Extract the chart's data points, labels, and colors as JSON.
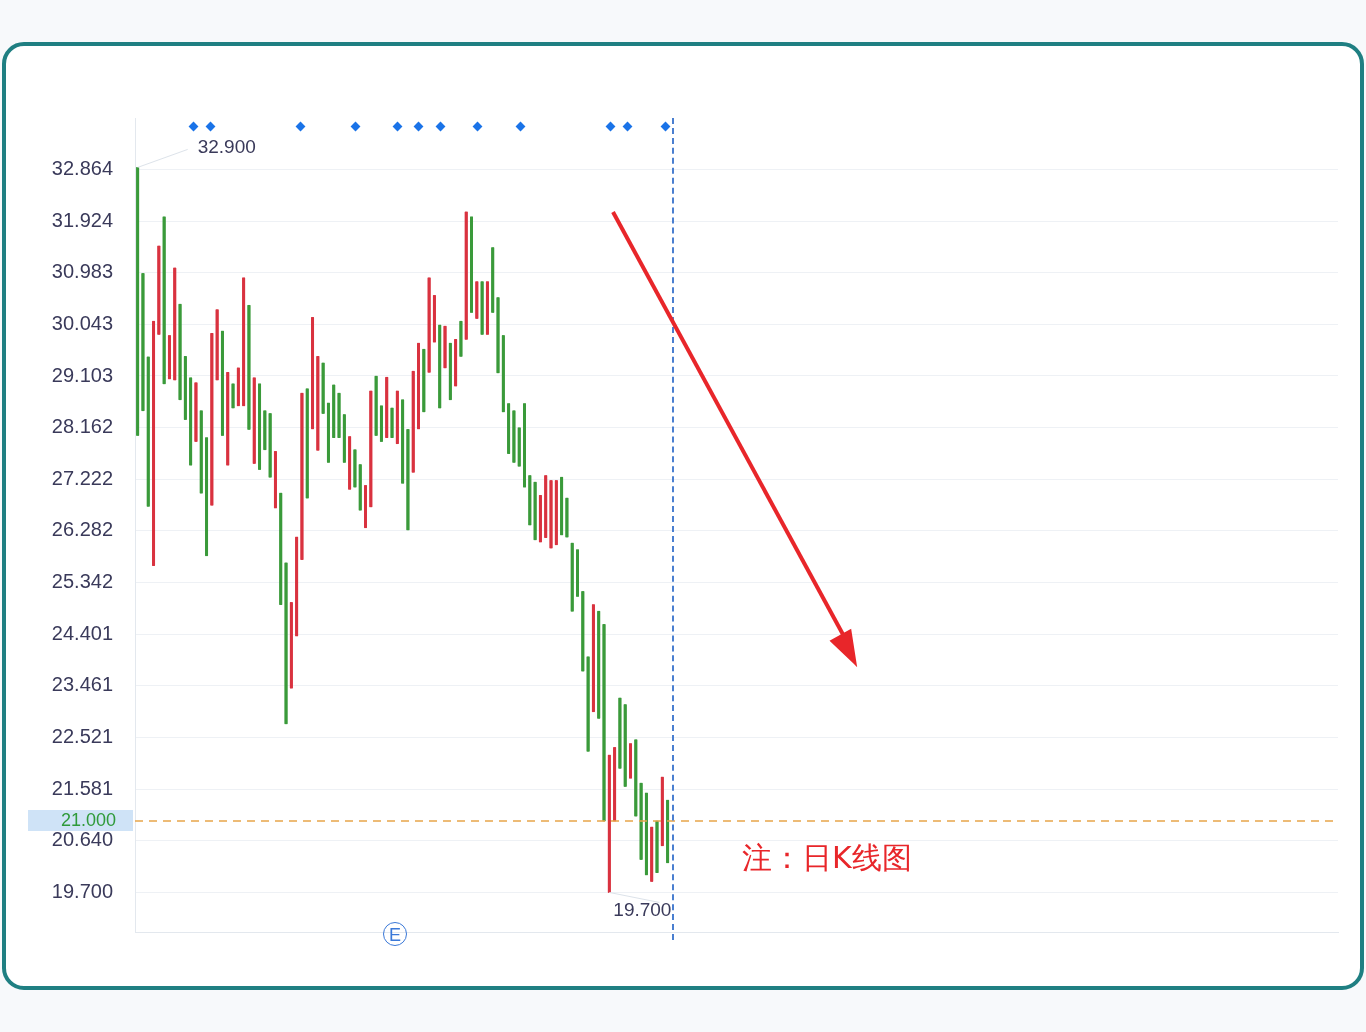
{
  "chart_data": {
    "type": "candlestick",
    "categories": [
      null,
      null,
      null,
      null,
      null,
      null,
      null,
      null,
      null,
      null,
      null,
      null,
      null,
      null,
      null,
      null,
      null,
      null,
      null,
      null,
      null,
      null,
      null,
      null,
      null,
      null,
      null,
      null,
      null,
      null,
      null,
      null,
      null,
      null,
      null,
      null,
      null,
      null,
      null,
      null,
      null,
      null,
      null,
      null,
      null,
      null,
      null,
      null,
      null,
      null,
      null,
      null,
      null,
      null,
      null,
      null,
      null,
      null,
      null,
      null,
      null,
      null,
      null,
      null,
      null,
      null,
      null,
      null,
      null,
      null,
      null,
      null,
      null,
      null,
      null,
      null,
      null,
      null,
      null,
      null,
      null,
      null,
      null,
      null,
      null,
      null,
      null,
      null,
      null,
      null,
      null,
      null,
      null,
      null,
      null,
      null,
      null,
      null,
      null,
      null,
      null,
      null,
      null,
      null,
      null,
      null,
      null,
      null,
      null,
      null,
      null,
      null,
      null,
      null,
      null,
      null,
      null,
      null,
      null,
      null,
      null,
      null,
      null,
      null,
      null,
      null,
      null,
      null,
      null,
      null,
      null,
      null,
      null,
      null,
      null,
      null,
      null,
      null,
      null,
      null,
      null,
      null,
      null,
      null,
      null,
      null,
      null,
      null,
      null,
      null,
      null,
      null,
      null,
      null,
      null,
      null,
      null,
      null,
      null,
      null,
      null,
      null,
      null,
      null,
      null,
      null,
      null,
      null,
      null,
      null,
      null,
      null,
      null,
      null,
      null,
      null,
      null,
      null,
      null,
      null,
      null,
      null,
      null,
      null,
      null,
      null,
      null,
      null,
      null,
      null,
      null,
      null,
      null,
      null,
      null,
      null,
      null,
      null,
      null,
      null,
      null,
      null,
      null,
      null,
      null,
      null,
      null,
      null,
      null,
      null,
      null,
      null,
      null,
      null,
      null,
      null,
      null,
      null,
      null,
      null,
      null,
      null,
      null,
      null,
      null,
      null,
      null
    ],
    "ohlc": [
      [
        32.9,
        32.9,
        28.02,
        28.02
      ],
      [
        30.97,
        30.97,
        28.47,
        28.47
      ],
      [
        29.45,
        29.45,
        26.73,
        26.73
      ],
      [
        25.65,
        30.1,
        25.65,
        30.1
      ],
      [
        29.86,
        31.47,
        29.86,
        31.47
      ],
      [
        32.0,
        32.0,
        28.96,
        28.96
      ],
      [
        29.05,
        29.84,
        29.05,
        29.84
      ],
      [
        29.03,
        31.07,
        29.03,
        31.07
      ],
      [
        30.41,
        30.41,
        28.67,
        28.67
      ],
      [
        29.46,
        29.46,
        28.31,
        28.31
      ],
      [
        29.07,
        29.07,
        27.48,
        27.48
      ],
      [
        27.91,
        28.98,
        27.91,
        28.98
      ],
      [
        28.47,
        28.47,
        26.97,
        26.97
      ],
      [
        27.98,
        27.98,
        25.83,
        25.83
      ],
      [
        26.75,
        29.88,
        26.75,
        29.88
      ],
      [
        29.03,
        30.31,
        29.03,
        30.31
      ],
      [
        29.92,
        29.92,
        28.02,
        28.02
      ],
      [
        27.48,
        29.17,
        27.48,
        29.17
      ],
      [
        28.96,
        28.96,
        28.52,
        28.52
      ],
      [
        28.56,
        29.25,
        28.56,
        29.25
      ],
      [
        28.56,
        30.89,
        28.56,
        30.89
      ],
      [
        30.39,
        30.39,
        28.13,
        28.13
      ],
      [
        27.51,
        29.07,
        27.51,
        29.07
      ],
      [
        28.96,
        28.96,
        27.4,
        27.4
      ],
      [
        28.47,
        28.47,
        27.76,
        27.76
      ],
      [
        28.42,
        28.42,
        27.26,
        27.26
      ],
      [
        26.7,
        27.73,
        26.7,
        27.73
      ],
      [
        26.97,
        26.97,
        24.94,
        24.94
      ],
      [
        25.7,
        25.7,
        22.77,
        22.77
      ],
      [
        23.42,
        24.98,
        23.42,
        24.98
      ],
      [
        24.37,
        26.17,
        24.37,
        26.17
      ],
      [
        25.76,
        28.79,
        25.76,
        28.79
      ],
      [
        28.87,
        28.87,
        26.88,
        26.88
      ],
      [
        28.14,
        30.17,
        28.14,
        30.17
      ],
      [
        27.75,
        29.46,
        27.75,
        29.46
      ],
      [
        29.34,
        29.34,
        28.42,
        28.42
      ],
      [
        28.61,
        28.61,
        27.53,
        27.53
      ],
      [
        28.94,
        28.94,
        27.98,
        27.98
      ],
      [
        28.79,
        28.79,
        27.98,
        27.98
      ],
      [
        28.4,
        28.4,
        27.53,
        27.53
      ],
      [
        27.04,
        28.0,
        27.04,
        28.0
      ],
      [
        27.76,
        27.76,
        27.08,
        27.08
      ],
      [
        27.49,
        27.49,
        26.66,
        26.66
      ],
      [
        26.34,
        27.11,
        26.34,
        27.11
      ],
      [
        26.72,
        28.83,
        26.72,
        28.83
      ],
      [
        29.1,
        29.1,
        28.02,
        28.02
      ],
      [
        28.56,
        28.56,
        27.91,
        27.91
      ],
      [
        27.98,
        29.08,
        27.98,
        29.08
      ],
      [
        28.52,
        28.52,
        27.98,
        27.98
      ],
      [
        27.87,
        28.83,
        27.87,
        28.83
      ],
      [
        28.67,
        28.67,
        27.15,
        27.15
      ],
      [
        28.13,
        28.13,
        26.3,
        26.3
      ],
      [
        27.35,
        29.19,
        27.35,
        29.19
      ],
      [
        28.14,
        29.7,
        28.14,
        29.7
      ],
      [
        29.59,
        29.59,
        28.45,
        28.45
      ],
      [
        29.17,
        30.89,
        29.17,
        30.89
      ],
      [
        29.72,
        30.57,
        29.72,
        30.57
      ],
      [
        30.03,
        30.03,
        28.52,
        28.52
      ],
      [
        29.25,
        30.01,
        29.25,
        30.01
      ],
      [
        29.7,
        29.7,
        28.67,
        28.67
      ],
      [
        28.92,
        29.77,
        28.92,
        29.77
      ],
      [
        30.1,
        30.1,
        29.46,
        29.46
      ],
      [
        29.77,
        32.09,
        29.77,
        32.09
      ],
      [
        32.0,
        32.0,
        30.26,
        30.26
      ],
      [
        30.15,
        30.82,
        30.15,
        30.82
      ],
      [
        30.82,
        30.82,
        29.86,
        29.86
      ],
      [
        29.86,
        30.82,
        29.86,
        30.82
      ],
      [
        31.44,
        31.44,
        30.26,
        30.26
      ],
      [
        30.53,
        30.53,
        29.16,
        29.16
      ],
      [
        29.84,
        29.84,
        28.45,
        28.45
      ],
      [
        28.6,
        28.6,
        27.69,
        27.69
      ],
      [
        28.47,
        28.47,
        27.53,
        27.53
      ],
      [
        28.16,
        28.16,
        27.46,
        27.46
      ],
      [
        28.6,
        28.6,
        27.08,
        27.08
      ],
      [
        27.29,
        27.29,
        26.39,
        26.39
      ],
      [
        27.17,
        27.17,
        26.12,
        26.12
      ],
      [
        26.08,
        26.93,
        26.08,
        26.93
      ],
      [
        26.16,
        27.29,
        26.16,
        27.29
      ],
      [
        25.97,
        27.2,
        25.97,
        27.2
      ],
      [
        26.03,
        27.2,
        26.03,
        27.2
      ],
      [
        27.26,
        27.26,
        26.21,
        26.21
      ],
      [
        26.88,
        26.88,
        26.17,
        26.17
      ],
      [
        26.06,
        26.06,
        24.82,
        24.82
      ],
      [
        25.94,
        25.94,
        25.09,
        25.09
      ],
      [
        25.18,
        25.18,
        23.73,
        23.73
      ],
      [
        23.99,
        23.99,
        22.27,
        22.27
      ],
      [
        22.99,
        24.94,
        22.99,
        24.94
      ],
      [
        24.82,
        24.82,
        22.87,
        22.87
      ],
      [
        24.58,
        24.58,
        21.0,
        21.0
      ],
      [
        19.7,
        22.2,
        19.7,
        22.2
      ],
      [
        21.0,
        22.34,
        21.0,
        22.34
      ],
      [
        23.24,
        23.24,
        21.96,
        21.96
      ],
      [
        23.12,
        23.12,
        21.63,
        21.63
      ],
      [
        21.78,
        22.41,
        21.78,
        22.41
      ],
      [
        22.48,
        22.48,
        21.09,
        21.09
      ],
      [
        21.69,
        21.69,
        20.3,
        20.3
      ],
      [
        21.51,
        21.51,
        20.02,
        20.02
      ],
      [
        19.9,
        20.89,
        19.9,
        20.89
      ],
      [
        21.0,
        21.0,
        20.06,
        20.06
      ],
      [
        20.55,
        21.8,
        20.55,
        21.8
      ],
      [
        21.38,
        21.38,
        20.24,
        20.24
      ],
      null,
      null,
      null,
      null,
      null,
      null,
      null,
      null,
      null,
      null,
      null,
      null,
      null,
      null,
      null,
      null,
      null,
      null,
      null,
      null,
      null,
      null,
      null,
      null,
      null,
      null,
      null,
      null,
      null,
      null,
      null,
      null,
      null,
      null,
      null,
      null,
      null,
      null,
      null,
      null,
      null,
      null,
      null,
      null,
      null,
      null,
      null,
      null,
      null,
      null,
      null,
      null,
      null,
      null,
      null,
      null,
      null,
      null,
      null,
      null,
      null,
      null,
      null,
      null,
      null,
      null,
      null,
      null,
      null,
      null,
      null,
      null,
      null,
      null,
      null,
      null,
      null,
      null,
      null,
      null,
      null,
      null,
      null,
      null,
      null,
      null,
      null,
      null,
      null,
      null,
      null,
      null,
      null,
      null,
      null,
      null,
      null,
      null,
      null,
      null,
      null,
      null,
      null,
      null,
      null,
      null,
      null,
      null,
      null,
      null,
      null,
      null,
      null,
      null,
      null,
      null,
      null,
      null,
      null,
      null,
      null,
      null,
      null,
      null,
      null,
      null
    ],
    "colors": [
      "#3a9a3a",
      "#3a9a3a",
      "#3a9a3a",
      "#d9323f",
      "#d9323f",
      "#3a9a3a",
      "#d9323f",
      "#d9323f",
      "#3a9a3a",
      "#3a9a3a",
      "#3a9a3a",
      "#d9323f",
      "#3a9a3a",
      "#3a9a3a",
      "#d9323f",
      "#d9323f",
      "#3a9a3a",
      "#d9323f",
      "#3a9a3a",
      "#d9323f",
      "#d9323f",
      "#3a9a3a",
      "#d9323f",
      "#3a9a3a",
      "#3a9a3a",
      "#3a9a3a",
      "#d9323f",
      "#3a9a3a",
      "#3a9a3a",
      "#d9323f",
      "#d9323f",
      "#d9323f",
      "#3a9a3a",
      "#d9323f",
      "#d9323f",
      "#3a9a3a",
      "#3a9a3a",
      "#3a9a3a",
      "#3a9a3a",
      "#3a9a3a",
      "#d9323f",
      "#3a9a3a",
      "#3a9a3a",
      "#d9323f",
      "#d9323f",
      "#3a9a3a",
      "#3a9a3a",
      "#d9323f",
      "#3a9a3a",
      "#d9323f",
      "#3a9a3a",
      "#3a9a3a",
      "#d9323f",
      "#d9323f",
      "#3a9a3a",
      "#d9323f",
      "#d9323f",
      "#3a9a3a",
      "#d9323f",
      "#3a9a3a",
      "#d9323f",
      "#3a9a3a",
      "#d9323f",
      "#3a9a3a",
      "#d9323f",
      "#3a9a3a",
      "#d9323f",
      "#3a9a3a",
      "#3a9a3a",
      "#3a9a3a",
      "#3a9a3a",
      "#3a9a3a",
      "#3a9a3a",
      "#3a9a3a",
      "#3a9a3a",
      "#3a9a3a",
      "#d9323f",
      "#d9323f",
      "#d9323f",
      "#d9323f",
      "#3a9a3a",
      "#3a9a3a",
      "#3a9a3a",
      "#3a9a3a",
      "#3a9a3a",
      "#3a9a3a",
      "#d9323f",
      "#3a9a3a",
      "#3a9a3a",
      "#d9323f",
      "#d9323f",
      "#3a9a3a",
      "#3a9a3a",
      "#d9323f",
      "#3a9a3a",
      "#3a9a3a",
      "#3a9a3a",
      "#d9323f",
      "#3a9a3a",
      "#d9323f",
      "#3a9a3a",
      null,
      null,
      null,
      null,
      null,
      null,
      null,
      null,
      null,
      null,
      null,
      null,
      null,
      null,
      null,
      null,
      null,
      null,
      null,
      null,
      null,
      null,
      null,
      null,
      null,
      null,
      null,
      null,
      null,
      null,
      null,
      null,
      null,
      null,
      null,
      null,
      null,
      null,
      null,
      null,
      null,
      null,
      null,
      null,
      null,
      null,
      null,
      null,
      null,
      null,
      null,
      null,
      null,
      null,
      null,
      null,
      null,
      null,
      null,
      null,
      null,
      null,
      null,
      null,
      null,
      null,
      null,
      null,
      null,
      null,
      null,
      null,
      null,
      null,
      null,
      null,
      null,
      null,
      null,
      null,
      null,
      null,
      null,
      null,
      null,
      null,
      null,
      null,
      null,
      null,
      null,
      null,
      null,
      null,
      null,
      null,
      null,
      null,
      null,
      null,
      null,
      null,
      null,
      null,
      null,
      null,
      null,
      null,
      null,
      null,
      null,
      null,
      null,
      null,
      null,
      null,
      null,
      null,
      null,
      null,
      null,
      null,
      null,
      null,
      null,
      null
    ],
    "ylim": [
      18.98,
      33.8
    ],
    "yticks": [
      {
        "value": 19.7,
        "label": "19.700"
      },
      {
        "value": 20.64,
        "label": "20.640"
      },
      {
        "value": 21.581,
        "label": "21.581"
      },
      {
        "value": 22.521,
        "label": "22.521"
      },
      {
        "value": 23.461,
        "label": "23.461"
      },
      {
        "value": 24.401,
        "label": "24.401"
      },
      {
        "value": 25.342,
        "label": "25.342"
      },
      {
        "value": 26.282,
        "label": "26.282"
      },
      {
        "value": 27.222,
        "label": "27.222"
      },
      {
        "value": 28.162,
        "label": "28.162"
      },
      {
        "value": 29.103,
        "label": "29.103"
      },
      {
        "value": 30.043,
        "label": "30.043"
      },
      {
        "value": 30.983,
        "label": "30.983"
      },
      {
        "value": 31.924,
        "label": "31.924"
      },
      {
        "value": 32.864,
        "label": "32.864"
      }
    ],
    "grid": "y",
    "tick_labels": "y",
    "legend": false,
    "ref_lines": [
      {
        "axis": "y",
        "value": 21.0,
        "label": "21.000",
        "color": "#e8a54a",
        "line_style": "dashed"
      }
    ],
    "annotations": [
      "32.900",
      "19.700",
      "E",
      "注：日K线图"
    ]
  }
}
